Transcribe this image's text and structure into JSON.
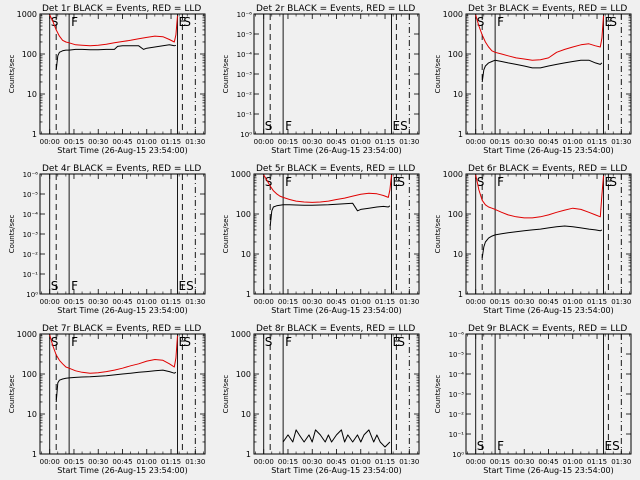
{
  "colors": {
    "events": "#000000",
    "lld": "#e00000",
    "background": "#f0f0f0"
  },
  "x_ticks": [
    "00:00",
    "00:15",
    "00:30",
    "00:45",
    "01:00",
    "01:15",
    "01:30"
  ],
  "x_label": "Start Time (26-Aug-15 23:54:00)",
  "y_label": "Counts/sec",
  "y_ticks_log": [
    "1",
    "10",
    "100",
    "1000"
  ],
  "y_ticks_empty": [
    "10⁰",
    "10⁻¹",
    "10⁻²",
    "10⁻³",
    "10⁻⁴",
    "10⁻⁵",
    "10⁻⁶"
  ],
  "marker_labels": {
    "S": "S",
    "F": "F",
    "E": "E",
    "ES": "ES"
  },
  "chart_data": [
    {
      "type": "line",
      "title": "Det 1r BLACK = Events, RED = LLD",
      "scale": "log",
      "ylim": [
        1,
        1000
      ],
      "xlim_min": [
        -6,
        96
      ],
      "markers_min": {
        "S_solid": 0,
        "S_dash": 4,
        "F": 12,
        "E_solid": 79,
        "E_dash": 82,
        "E_dashdot": 90
      },
      "series": [
        {
          "name": "LLD",
          "color": "red",
          "x": [
            0,
            2,
            4,
            6,
            8,
            10,
            12,
            16,
            20,
            25,
            30,
            35,
            40,
            45,
            50,
            55,
            60,
            65,
            70,
            74,
            77,
            78,
            79
          ],
          "y": [
            950,
            650,
            400,
            280,
            220,
            200,
            190,
            170,
            165,
            160,
            165,
            175,
            190,
            205,
            220,
            240,
            260,
            280,
            270,
            230,
            200,
            300,
            900
          ]
        },
        {
          "name": "Events",
          "color": "black",
          "x": [
            4,
            5,
            6,
            8,
            10,
            12,
            16,
            20,
            25,
            30,
            35,
            40,
            42,
            45,
            50,
            55,
            58,
            60,
            65,
            70,
            74,
            77,
            78
          ],
          "y": [
            40,
            90,
            110,
            120,
            125,
            125,
            130,
            130,
            128,
            128,
            130,
            130,
            155,
            160,
            160,
            160,
            130,
            140,
            150,
            160,
            170,
            160,
            165
          ]
        }
      ]
    },
    {
      "type": "line",
      "title": "Det 2r BLACK = Events, RED = LLD",
      "scale": "empty",
      "xlim_min": [
        -6,
        96
      ],
      "markers_min": {
        "S_solid": 0,
        "S_dash": 4,
        "F": 12,
        "E_solid": 79,
        "E_dash": 82,
        "E_dashdot": 90
      },
      "series": []
    },
    {
      "type": "line",
      "title": "Det 3r BLACK = Events, RED = LLD",
      "scale": "log",
      "ylim": [
        1,
        1000
      ],
      "xlim_min": [
        -6,
        96
      ],
      "markers_min": {
        "S_solid": 0,
        "S_dash": 4,
        "F": 12,
        "E_solid": 79,
        "E_dash": 82,
        "E_dashdot": 90
      },
      "series": [
        {
          "name": "LLD",
          "color": "red",
          "x": [
            0,
            2,
            4,
            6,
            8,
            10,
            12,
            16,
            20,
            25,
            30,
            35,
            40,
            45,
            50,
            55,
            60,
            65,
            70,
            74,
            77,
            78,
            79
          ],
          "y": [
            950,
            500,
            300,
            200,
            150,
            120,
            110,
            100,
            90,
            80,
            75,
            70,
            72,
            80,
            110,
            130,
            150,
            170,
            180,
            160,
            150,
            250,
            900
          ]
        },
        {
          "name": "Events",
          "color": "black",
          "x": [
            4,
            5,
            6,
            8,
            10,
            12,
            16,
            20,
            25,
            30,
            35,
            40,
            45,
            50,
            55,
            60,
            65,
            70,
            74,
            77,
            78
          ],
          "y": [
            20,
            40,
            50,
            60,
            65,
            70,
            65,
            60,
            55,
            50,
            45,
            45,
            50,
            55,
            60,
            65,
            70,
            70,
            60,
            55,
            60
          ]
        }
      ]
    },
    {
      "type": "line",
      "title": "Det 4r BLACK = Events, RED = LLD",
      "scale": "empty",
      "xlim_min": [
        -6,
        96
      ],
      "markers_min": {
        "S_solid": 0,
        "S_dash": 4,
        "F": 12,
        "E_solid": 79,
        "E_dash": 82,
        "E_dashdot": 90
      },
      "series": []
    },
    {
      "type": "line",
      "title": "Det 5r BLACK = Events, RED = LLD",
      "scale": "log",
      "ylim": [
        1,
        1000
      ],
      "xlim_min": [
        -6,
        96
      ],
      "markers_min": {
        "S_solid": 0,
        "S_dash": 4,
        "F": 12,
        "E_solid": 79,
        "E_dash": 82,
        "E_dashdot": 90
      },
      "series": [
        {
          "name": "LLD",
          "color": "red",
          "x": [
            0,
            2,
            4,
            6,
            8,
            10,
            12,
            16,
            20,
            25,
            30,
            35,
            40,
            45,
            50,
            55,
            60,
            65,
            70,
            74,
            77,
            78,
            79
          ],
          "y": [
            950,
            700,
            500,
            380,
            320,
            280,
            260,
            230,
            210,
            200,
            195,
            200,
            210,
            230,
            250,
            280,
            310,
            330,
            320,
            290,
            260,
            400,
            950
          ]
        },
        {
          "name": "Events",
          "color": "black",
          "x": [
            4,
            5,
            6,
            8,
            10,
            12,
            16,
            20,
            25,
            30,
            35,
            40,
            45,
            50,
            55,
            58,
            60,
            65,
            70,
            74,
            77,
            78
          ],
          "y": [
            50,
            120,
            150,
            160,
            165,
            170,
            170,
            168,
            165,
            165,
            168,
            170,
            175,
            180,
            185,
            120,
            130,
            140,
            150,
            155,
            150,
            160
          ]
        }
      ]
    },
    {
      "type": "line",
      "title": "Det 6r BLACK = Events, RED = LLD",
      "scale": "log",
      "ylim": [
        1,
        1000
      ],
      "xlim_min": [
        -6,
        96
      ],
      "markers_min": {
        "S_solid": 0,
        "S_dash": 4,
        "F": 12,
        "E_solid": 79,
        "E_dash": 82,
        "E_dashdot": 90
      },
      "series": [
        {
          "name": "LLD",
          "color": "red",
          "x": [
            0,
            2,
            4,
            6,
            8,
            10,
            12,
            16,
            20,
            25,
            30,
            35,
            40,
            45,
            50,
            55,
            60,
            65,
            70,
            74,
            77,
            78,
            79
          ],
          "y": [
            950,
            400,
            220,
            170,
            150,
            140,
            130,
            110,
            95,
            85,
            80,
            80,
            85,
            95,
            110,
            125,
            140,
            130,
            110,
            95,
            85,
            300,
            900
          ]
        },
        {
          "name": "Events",
          "color": "black",
          "x": [
            4,
            5,
            6,
            8,
            10,
            12,
            16,
            20,
            25,
            30,
            35,
            40,
            45,
            50,
            55,
            60,
            65,
            70,
            74,
            77,
            78
          ],
          "y": [
            8,
            15,
            20,
            25,
            28,
            30,
            32,
            34,
            36,
            38,
            40,
            42,
            45,
            48,
            50,
            48,
            45,
            42,
            40,
            38,
            40
          ]
        }
      ]
    },
    {
      "type": "line",
      "title": "Det 7r BLACK = Events, RED = LLD",
      "scale": "log",
      "ylim": [
        1,
        1000
      ],
      "xlim_min": [
        -6,
        96
      ],
      "markers_min": {
        "S_solid": 0,
        "S_dash": 4,
        "F": 12,
        "E_solid": 79,
        "E_dash": 82,
        "E_dashdot": 90
      },
      "series": [
        {
          "name": "LLD",
          "color": "red",
          "x": [
            0,
            2,
            4,
            6,
            8,
            10,
            12,
            16,
            20,
            25,
            30,
            35,
            40,
            45,
            50,
            55,
            60,
            65,
            70,
            74,
            77,
            78,
            79
          ],
          "y": [
            950,
            500,
            300,
            220,
            180,
            150,
            140,
            120,
            110,
            105,
            108,
            115,
            125,
            140,
            160,
            180,
            210,
            230,
            220,
            180,
            150,
            250,
            900
          ]
        },
        {
          "name": "Events",
          "color": "black",
          "x": [
            4,
            5,
            6,
            8,
            10,
            12,
            16,
            20,
            25,
            30,
            35,
            40,
            45,
            50,
            55,
            60,
            65,
            70,
            74,
            77,
            78
          ],
          "y": [
            20,
            60,
            70,
            75,
            78,
            80,
            82,
            84,
            85,
            88,
            90,
            95,
            100,
            105,
            110,
            115,
            120,
            125,
            115,
            105,
            110
          ]
        }
      ]
    },
    {
      "type": "line",
      "title": "Det 8r BLACK = Events, RED = LLD",
      "scale": "log",
      "ylim": [
        1,
        1000
      ],
      "xlim_min": [
        -6,
        96
      ],
      "markers_min": {
        "S_solid": 0,
        "S_dash": 4,
        "F": 12,
        "E_solid": 79,
        "E_dash": 82,
        "E_dashdot": 90
      },
      "series": [
        {
          "name": "Events",
          "color": "black",
          "x": [
            12,
            15,
            18,
            20,
            22,
            25,
            28,
            30,
            32,
            35,
            38,
            40,
            42,
            45,
            48,
            50,
            52,
            55,
            58,
            60,
            62,
            65,
            68,
            70,
            72,
            75,
            78
          ],
          "y": [
            2,
            3,
            2,
            4,
            3,
            2,
            3,
            2,
            4,
            3,
            2,
            3,
            2,
            3,
            4,
            2,
            3,
            2,
            3,
            2,
            3,
            4,
            2,
            3,
            2,
            1.5,
            2
          ]
        }
      ]
    },
    {
      "type": "line",
      "title": "Det 9r BLACK = Events, RED = LLD",
      "scale": "empty",
      "xlim_min": [
        -6,
        96
      ],
      "markers_min": {
        "S_solid": 0,
        "S_dash": 4,
        "F": 12,
        "E_solid": 79,
        "E_dash": 82,
        "E_dashdot": 90
      },
      "series": []
    }
  ]
}
